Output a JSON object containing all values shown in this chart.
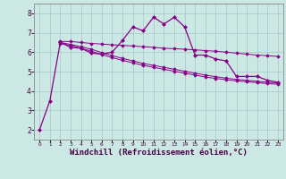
{
  "background_color": "#cce8e4",
  "grid_color": "#aacccc",
  "line_color": "#880088",
  "xlabel": "Windchill (Refroidissement éolien,°C)",
  "xlabel_fontsize": 6.5,
  "ytick_labels": [
    "2",
    "3",
    "4",
    "5",
    "6",
    "7",
    "8"
  ],
  "yticks": [
    2,
    3,
    4,
    5,
    6,
    7,
    8
  ],
  "xticks": [
    0,
    1,
    2,
    3,
    4,
    5,
    6,
    7,
    8,
    9,
    10,
    11,
    12,
    13,
    14,
    15,
    16,
    17,
    18,
    19,
    20,
    21,
    22,
    23
  ],
  "ylim": [
    1.5,
    8.5
  ],
  "xlim": [
    -0.5,
    23.5
  ],
  "series": [
    {
      "x": [
        0,
        1,
        2,
        3,
        4,
        5,
        6,
        7,
        8,
        9,
        10,
        11,
        12,
        13,
        14,
        15,
        16,
        17,
        18,
        19,
        20,
        21,
        22,
        23
      ],
      "y": [
        2.0,
        3.5,
        6.5,
        6.25,
        6.2,
        5.95,
        5.9,
        6.0,
        6.6,
        7.3,
        7.1,
        7.8,
        7.45,
        7.8,
        7.3,
        5.85,
        5.85,
        5.65,
        5.55,
        4.75,
        4.75,
        4.75,
        4.55,
        4.45
      ],
      "marker": "D",
      "marker_size": 2.0,
      "linewidth": 0.9
    },
    {
      "x": [
        2,
        3,
        4,
        5,
        6,
        7,
        8,
        9,
        10,
        11,
        12,
        13,
        14,
        15,
        16,
        17,
        18,
        19,
        20,
        21,
        22,
        23
      ],
      "y": [
        6.55,
        6.55,
        6.5,
        6.45,
        6.42,
        6.38,
        6.35,
        6.32,
        6.28,
        6.25,
        6.2,
        6.18,
        6.15,
        6.12,
        6.08,
        6.05,
        6.0,
        5.95,
        5.9,
        5.85,
        5.82,
        5.78
      ],
      "marker": "D",
      "marker_size": 1.8,
      "linewidth": 0.7
    },
    {
      "x": [
        2,
        3,
        4,
        5,
        6,
        7,
        8,
        9,
        10,
        11,
        12,
        13,
        14,
        15,
        16,
        17,
        18,
        19,
        20,
        21,
        22,
        23
      ],
      "y": [
        6.45,
        6.35,
        6.2,
        6.05,
        5.88,
        5.72,
        5.58,
        5.45,
        5.32,
        5.22,
        5.12,
        5.02,
        4.92,
        4.82,
        4.72,
        4.65,
        4.58,
        4.52,
        4.48,
        4.43,
        4.38,
        4.35
      ],
      "marker": "D",
      "marker_size": 1.8,
      "linewidth": 0.7
    },
    {
      "x": [
        2,
        3,
        4,
        5,
        6,
        7,
        8,
        9,
        10,
        11,
        12,
        13,
        14,
        15,
        16,
        17,
        18,
        19,
        20,
        21,
        22,
        23
      ],
      "y": [
        6.5,
        6.4,
        6.28,
        6.15,
        5.98,
        5.82,
        5.68,
        5.55,
        5.42,
        5.32,
        5.22,
        5.12,
        5.02,
        4.92,
        4.82,
        4.74,
        4.66,
        4.6,
        4.55,
        4.5,
        4.45,
        4.42
      ],
      "marker": "D",
      "marker_size": 1.8,
      "linewidth": 0.7
    }
  ]
}
